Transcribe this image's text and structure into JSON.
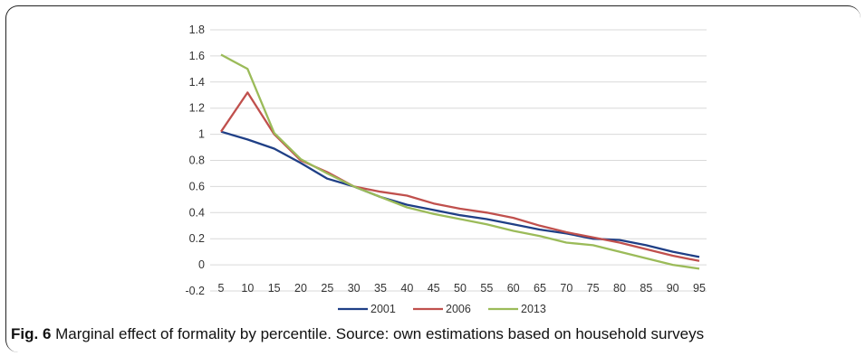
{
  "figure": {
    "label": "Fig. 6",
    "caption": " Marginal effect of formality by percentile. Source: own estimations based on household surveys"
  },
  "chart_data": {
    "type": "line",
    "x": [
      5,
      10,
      15,
      20,
      25,
      30,
      35,
      40,
      45,
      50,
      55,
      60,
      65,
      70,
      75,
      80,
      85,
      90,
      95
    ],
    "ylim": [
      -0.2,
      1.8
    ],
    "yticks": [
      -0.2,
      0,
      0.2,
      0.4,
      0.6,
      0.8,
      1,
      1.2,
      1.4,
      1.6,
      1.8
    ],
    "ytick_labels": [
      "-0.2",
      "0",
      "0.2",
      "0.4",
      "0.6",
      "0.8",
      "1",
      "1.2",
      "1.4",
      "1.6",
      "1.8"
    ],
    "grid": true,
    "legend_position": "bottom",
    "series": [
      {
        "name": "2001",
        "color": "#1f3f86",
        "values": [
          1.02,
          0.96,
          0.89,
          0.78,
          0.66,
          0.6,
          0.52,
          0.46,
          0.42,
          0.38,
          0.35,
          0.31,
          0.27,
          0.24,
          0.2,
          0.19,
          0.15,
          0.1,
          0.06
        ]
      },
      {
        "name": "2006",
        "color": "#c0504d",
        "values": [
          1.02,
          1.32,
          1.0,
          0.8,
          0.71,
          0.6,
          0.56,
          0.53,
          0.47,
          0.43,
          0.4,
          0.36,
          0.3,
          0.25,
          0.21,
          0.17,
          0.12,
          0.07,
          0.03
        ]
      },
      {
        "name": "2013",
        "color": "#9bbb59",
        "values": [
          1.61,
          1.5,
          1.01,
          0.81,
          0.7,
          0.6,
          0.52,
          0.44,
          0.39,
          0.35,
          0.31,
          0.26,
          0.22,
          0.17,
          0.15,
          0.1,
          0.05,
          0.0,
          -0.03
        ]
      }
    ]
  }
}
